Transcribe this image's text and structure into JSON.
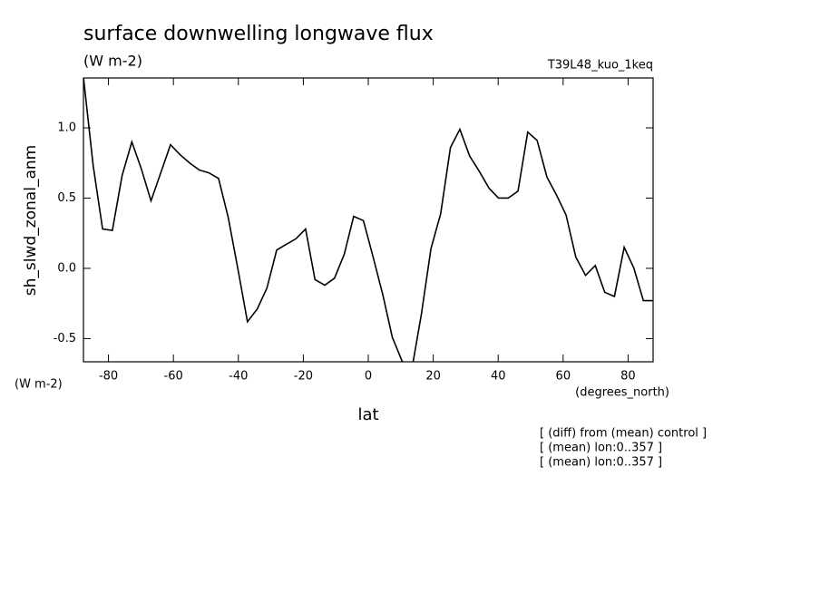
{
  "chart_data": {
    "type": "line",
    "title": "surface downwelling longwave flux",
    "subtitle": "(W m-2)",
    "run_label": "T39L48_kuo_1keq",
    "y_label": "sh_slwd_zonal_anm",
    "y_units": "(W m-2)",
    "x_units": "(degrees_north)",
    "x_label": "lat",
    "notes": [
      "[ (diff) from (mean) control ]",
      "[ (mean) lon:0..357 ]",
      "[ (mean) lon:0..357 ]"
    ],
    "x": [
      -87.7,
      -84.7,
      -81.8,
      -78.8,
      -75.8,
      -72.8,
      -69.9,
      -66.9,
      -63.9,
      -60.9,
      -58.0,
      -55.0,
      -52.0,
      -49.1,
      -46.1,
      -43.1,
      -40.1,
      -37.2,
      -34.2,
      -31.2,
      -28.2,
      -25.3,
      -22.3,
      -19.3,
      -16.4,
      -13.4,
      -10.4,
      -7.4,
      -4.5,
      -1.5,
      1.5,
      4.5,
      7.4,
      10.4,
      13.4,
      16.4,
      19.3,
      22.3,
      25.3,
      28.2,
      31.2,
      34.2,
      37.2,
      40.1,
      43.1,
      46.1,
      49.1,
      52.0,
      55.0,
      58.0,
      60.9,
      63.9,
      66.9,
      69.9,
      72.8,
      75.8,
      78.8,
      81.8,
      84.7,
      87.7
    ],
    "series": [
      {
        "color": "#000000",
        "values": [
          1.36,
          0.73,
          0.28,
          0.27,
          0.66,
          0.9,
          0.71,
          0.48,
          0.68,
          0.88,
          0.81,
          0.75,
          0.7,
          0.68,
          0.64,
          0.36,
          -0.01,
          -0.38,
          -0.29,
          -0.14,
          0.13,
          0.17,
          0.21,
          0.28,
          -0.08,
          -0.12,
          -0.07,
          0.1,
          0.37,
          0.34,
          0.08,
          -0.19,
          -0.49,
          -0.66,
          -0.72,
          -0.32,
          0.14,
          0.39,
          0.86,
          0.99,
          0.8,
          0.69,
          0.57,
          0.5,
          0.5,
          0.55,
          0.97,
          0.91,
          0.65,
          0.52,
          0.38,
          0.08,
          -0.05,
          0.02,
          -0.17,
          -0.2,
          0.15,
          0.0,
          -0.23,
          -0.23
        ]
      }
    ],
    "xlim": [
      -87.7,
      87.7
    ],
    "ylim": [
      -0.665,
      1.355
    ],
    "xticks": [
      -80,
      -60,
      -40,
      -20,
      0,
      20,
      40,
      60,
      80
    ],
    "yticks": [
      -0.5,
      {
        "value": 0,
        "label": "0.0"
      },
      0.5,
      {
        "value": 1,
        "label": "1.0"
      }
    ]
  }
}
